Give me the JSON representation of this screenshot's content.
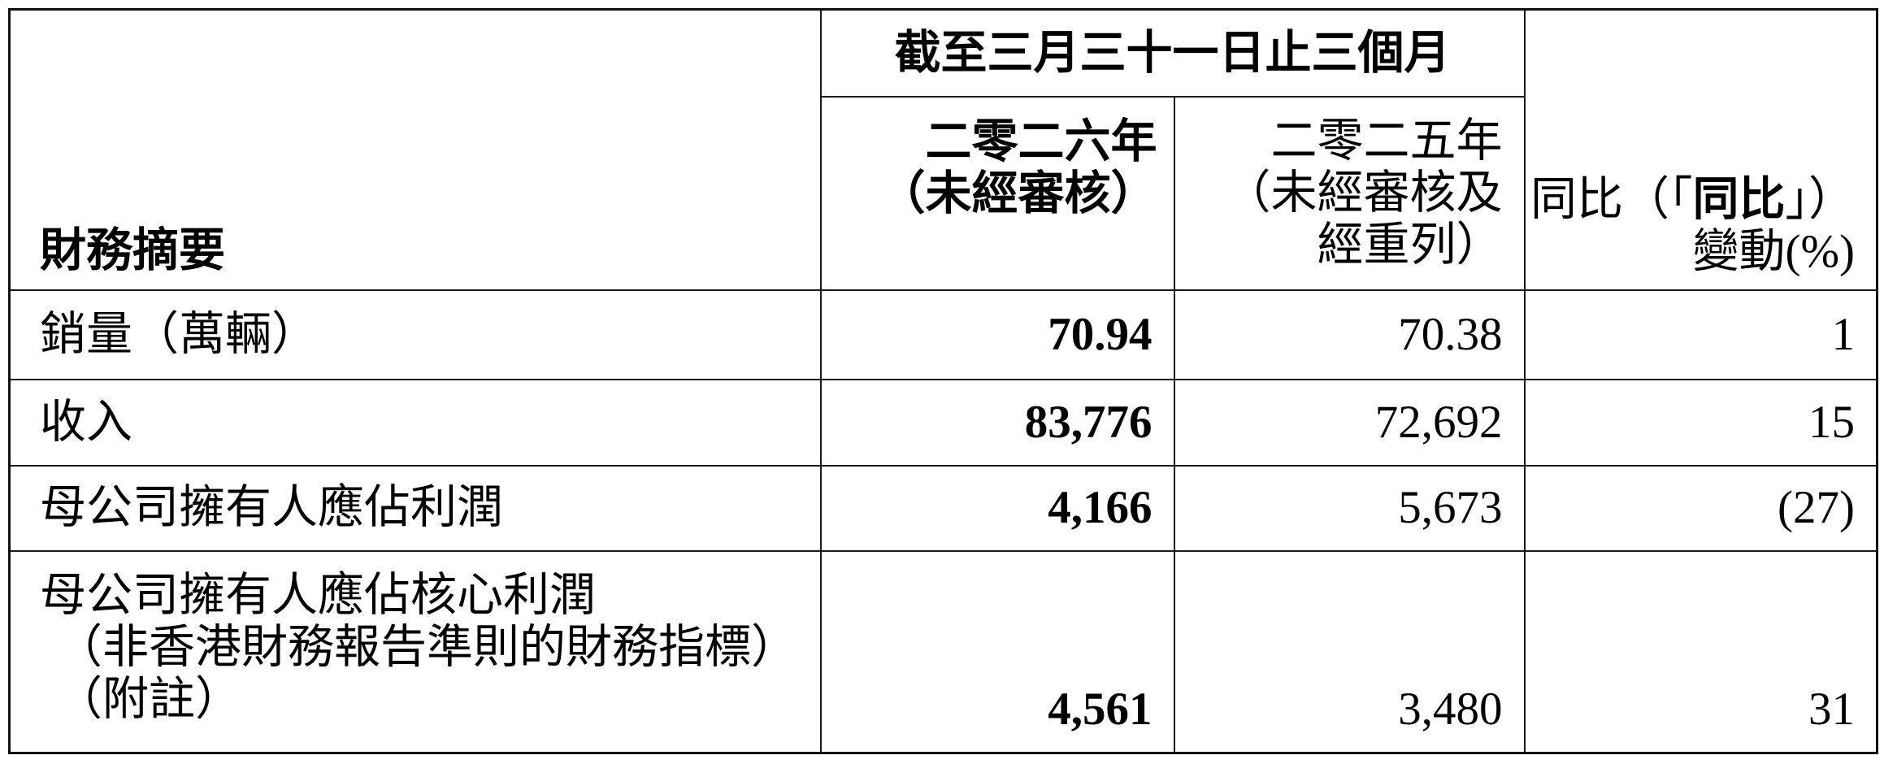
{
  "colors": {
    "background": "#ffffff",
    "text": "#000000",
    "border": "#1a1a1a"
  },
  "table": {
    "corner_label": "財務摘要",
    "period_header": "截至三月三十一日止三個月",
    "col_2026": {
      "line1": "二零二六年",
      "line2": "（未經審核）"
    },
    "col_2025": {
      "line1": "二零二五年",
      "line2": "（未經審核及",
      "line3": "經重列）"
    },
    "col_yoy": {
      "line1_prefix": "同比（「",
      "line1_bold": "同比",
      "line1_suffix": "」）",
      "line2": "變動(%)"
    },
    "rows": [
      {
        "label_lines": [
          "銷量（萬輛）"
        ],
        "v2026": "70.94",
        "v2025": "70.38",
        "yoy": "1"
      },
      {
        "label_lines": [
          "收入"
        ],
        "v2026": "83,776",
        "v2025": "72,692",
        "yoy": "15"
      },
      {
        "label_lines": [
          "母公司擁有人應佔利潤"
        ],
        "v2026": "4,166",
        "v2025": "5,673",
        "yoy": "(27)"
      },
      {
        "label_lines": [
          "母公司擁有人應佔核心利潤",
          "（非香港財務報告準則的財務指標）",
          "（附註）"
        ],
        "v2026": "4,561",
        "v2025": "3,480",
        "yoy": "31"
      }
    ]
  }
}
